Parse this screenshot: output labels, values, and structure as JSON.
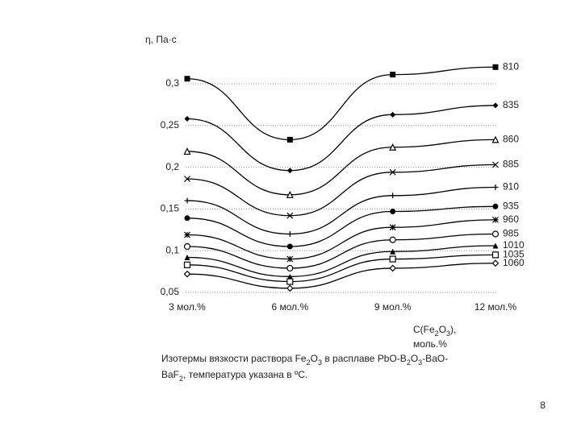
{
  "chart_data": {
    "type": "line",
    "y_label": "η, Па·с",
    "x_label": [
      "C(Fe",
      "2",
      "O",
      "3",
      "),"
    ],
    "x_label_2": "моль.%",
    "caption": [
      "Изотермы вязкости раствора Fe",
      "2",
      "O",
      "3",
      " в расплаве PbO-B",
      "2",
      "O",
      "3",
      "-BaO-"
    ],
    "caption_2": [
      "BaF",
      "2",
      ", температура  указана в ºC."
    ],
    "categories": [
      "3 мол.%",
      "6 мол.%",
      "9 мол.%",
      "12 мол.%"
    ],
    "ylim": [
      0.05,
      0.3
    ],
    "yticks": [
      {
        "value": 0.05,
        "label": "0,05"
      },
      {
        "value": 0.1,
        "label": "0,1"
      },
      {
        "value": 0.15,
        "label": "0,15"
      },
      {
        "value": 0.2,
        "label": "0,2"
      },
      {
        "value": 0.25,
        "label": "0,25"
      },
      {
        "value": 0.3,
        "label": "0,3"
      }
    ],
    "grid": true,
    "series": [
      {
        "name": "810",
        "color": "#000000",
        "marker": "square",
        "values": [
          0.306,
          0.233,
          0.311,
          0.32
        ]
      },
      {
        "name": "835",
        "color": "#000000",
        "marker": "diamond",
        "values": [
          0.258,
          0.196,
          0.263,
          0.274
        ]
      },
      {
        "name": "860",
        "color": "#000000",
        "marker": "triangle-open",
        "values": [
          0.219,
          0.167,
          0.224,
          0.233
        ]
      },
      {
        "name": "885",
        "color": "#000000",
        "marker": "x",
        "values": [
          0.186,
          0.142,
          0.194,
          0.203
        ]
      },
      {
        "name": "910",
        "color": "#000000",
        "marker": "plus",
        "values": [
          0.16,
          0.12,
          0.166,
          0.176
        ]
      },
      {
        "name": "935",
        "color": "#000000",
        "marker": "circle",
        "values": [
          0.139,
          0.105,
          0.147,
          0.153
        ]
      },
      {
        "name": "960",
        "color": "#000000",
        "marker": "asterisk",
        "values": [
          0.119,
          0.09,
          0.128,
          0.137
        ]
      },
      {
        "name": "985",
        "color": "#000000",
        "marker": "circle-open",
        "values": [
          0.105,
          0.079,
          0.113,
          0.12
        ]
      },
      {
        "name": "1010",
        "color": "#000000",
        "marker": "triangle",
        "values": [
          0.092,
          0.069,
          0.099,
          0.106
        ]
      },
      {
        "name": "1035",
        "color": "#000000",
        "marker": "square-open",
        "values": [
          0.083,
          0.063,
          0.09,
          0.095
        ]
      },
      {
        "name": "1060",
        "color": "#000000",
        "marker": "diamond-open",
        "values": [
          0.072,
          0.055,
          0.079,
          0.085
        ]
      }
    ]
  },
  "page_number": "8"
}
